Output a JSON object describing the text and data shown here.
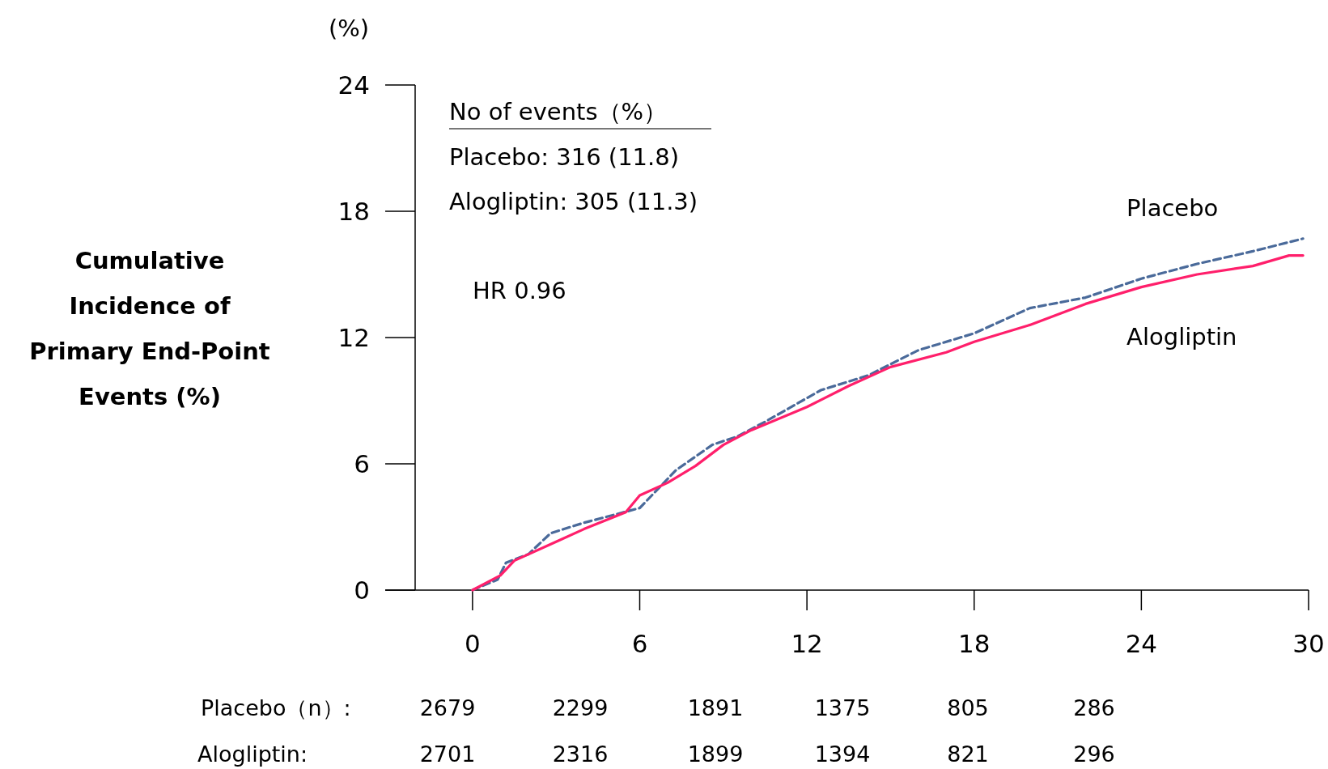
{
  "chart_data": {
    "type": "line",
    "ylabel": "Cumulative\nIncidence of\nPrimary End-Point\nEvents (%)",
    "xlim": [
      -2,
      30
    ],
    "ylim": [
      0,
      24
    ],
    "xticks": [
      0,
      6,
      12,
      18,
      24,
      30
    ],
    "yticks": [
      0,
      6,
      12,
      18,
      24
    ],
    "grid": false,
    "series": [
      {
        "name": "Placebo",
        "color": "#4a6a9a",
        "line_style": "dashed",
        "x": [
          0,
          0.9,
          1.2,
          2,
          2.8,
          4,
          6,
          7.3,
          8.6,
          9.5,
          10.5,
          12.5,
          14.2,
          16,
          18,
          20,
          22,
          24,
          26,
          28,
          29.8
        ],
        "values": [
          0,
          0.5,
          1.3,
          1.7,
          2.7,
          3.2,
          3.9,
          5.7,
          6.9,
          7.3,
          8.0,
          9.5,
          10.2,
          11.4,
          12.2,
          13.4,
          13.9,
          14.8,
          15.5,
          16.1,
          16.7
        ]
      },
      {
        "name": "Alogliptin",
        "color": "#ff1f6b",
        "line_style": "solid",
        "x": [
          0,
          1,
          1.5,
          3,
          4,
          5.5,
          6,
          7,
          8,
          9,
          10,
          12,
          13.5,
          15,
          17,
          18,
          20,
          22,
          24,
          26,
          28,
          29.3,
          29.8
        ],
        "values": [
          0,
          0.7,
          1.4,
          2.3,
          2.9,
          3.7,
          4.5,
          5.1,
          5.9,
          6.9,
          7.6,
          8.7,
          9.7,
          10.6,
          11.3,
          11.8,
          12.6,
          13.6,
          14.4,
          15.0,
          15.4,
          15.9,
          15.9
        ]
      }
    ],
    "annotations": [
      "(%)",
      "No of events（%）",
      "Placebo: 316 (11.8)",
      "Alogliptin: 305 (11.3)",
      "HR 0.96",
      "Placebo（n）:",
      "2679",
      "2299",
      "1891",
      "1375",
      "805",
      "286",
      "Alogliptin:",
      "2701",
      "2316",
      "1899",
      "1394",
      "821",
      "296"
    ]
  }
}
